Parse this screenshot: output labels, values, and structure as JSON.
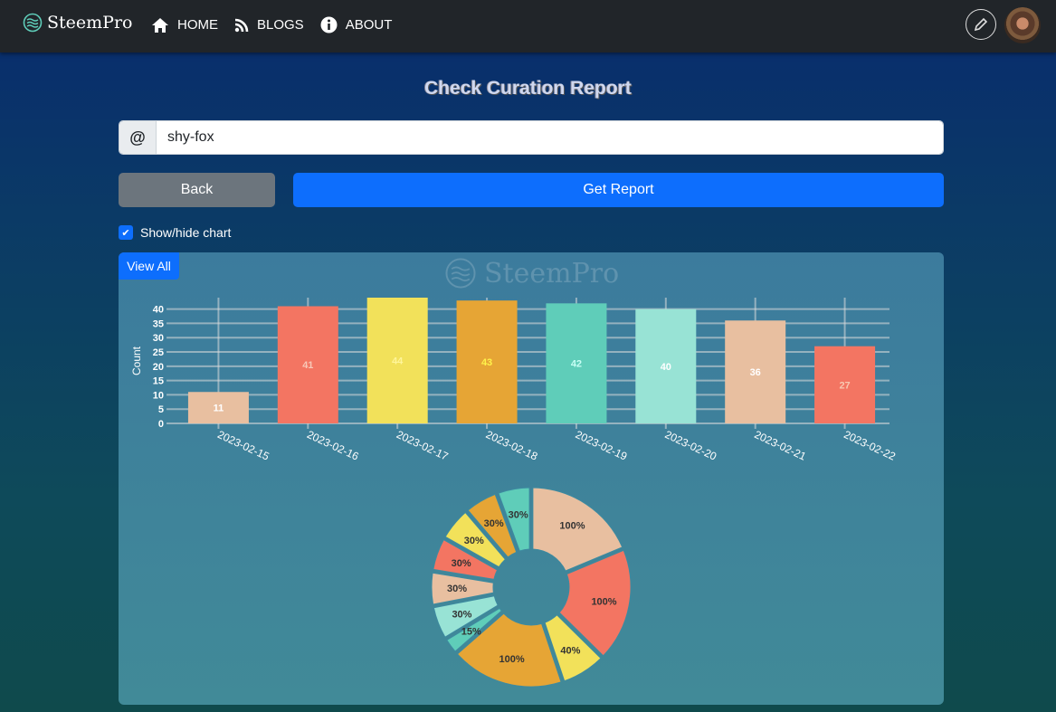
{
  "nav": {
    "brand": "SteemPro",
    "links": [
      {
        "label": "HOME",
        "icon": "home-icon"
      },
      {
        "label": "BLOGS",
        "icon": "rss-icon"
      },
      {
        "label": "ABOUT",
        "icon": "info-icon"
      }
    ]
  },
  "page": {
    "title": "Check Curation Report",
    "username": "shy-fox",
    "at_symbol": "@",
    "back_label": "Back",
    "get_report_label": "Get Report",
    "checkbox_label": "Show/hide chart",
    "view_all_label": "View All",
    "watermark": "SteemPro"
  },
  "colors": {
    "peach": "#e8bfa0",
    "coral": "#f37562",
    "yellow": "#f2e15a",
    "orange": "#e6a535",
    "teal": "#5fcdb9",
    "mint": "#98e3d5"
  },
  "chart_data": [
    {
      "type": "bar",
      "ylabel": "Count",
      "ylim": [
        0,
        44
      ],
      "yticks": [
        0,
        5,
        10,
        15,
        20,
        25,
        30,
        35,
        40
      ],
      "categories": [
        "2023-02-15",
        "2023-02-16",
        "2023-02-17",
        "2023-02-18",
        "2023-02-19",
        "2023-02-20",
        "2023-02-21",
        "2023-02-22"
      ],
      "values": [
        11,
        41,
        44,
        43,
        42,
        40,
        36,
        27
      ],
      "colors": [
        "#e8bfa0",
        "#f37562",
        "#f2e15a",
        "#e6a535",
        "#5fcdb9",
        "#98e3d5",
        "#e8bfa0",
        "#f37562"
      ],
      "label_colors": [
        "#ffffff",
        "#f8c8b8",
        "#fff59a",
        "#fff24a",
        "#c8fff5",
        "#ffffff",
        "#ffffff",
        "#f8c8b0"
      ],
      "grid": true
    },
    {
      "type": "pie",
      "variant": "doughnut",
      "values": [
        100,
        100,
        40,
        100,
        15,
        30,
        30,
        30,
        30,
        30,
        30
      ],
      "labels": [
        "100%",
        "100%",
        "40%",
        "100%",
        "15%",
        "30%",
        "30%",
        "30%",
        "30%",
        "30%",
        "30%"
      ],
      "colors": [
        "#e8bfa0",
        "#f37562",
        "#f2e15a",
        "#e6a535",
        "#5fcdb9",
        "#98e3d5",
        "#e8bfa0",
        "#f37562",
        "#f2e15a",
        "#e6a535",
        "#5fcdb9"
      ]
    }
  ]
}
